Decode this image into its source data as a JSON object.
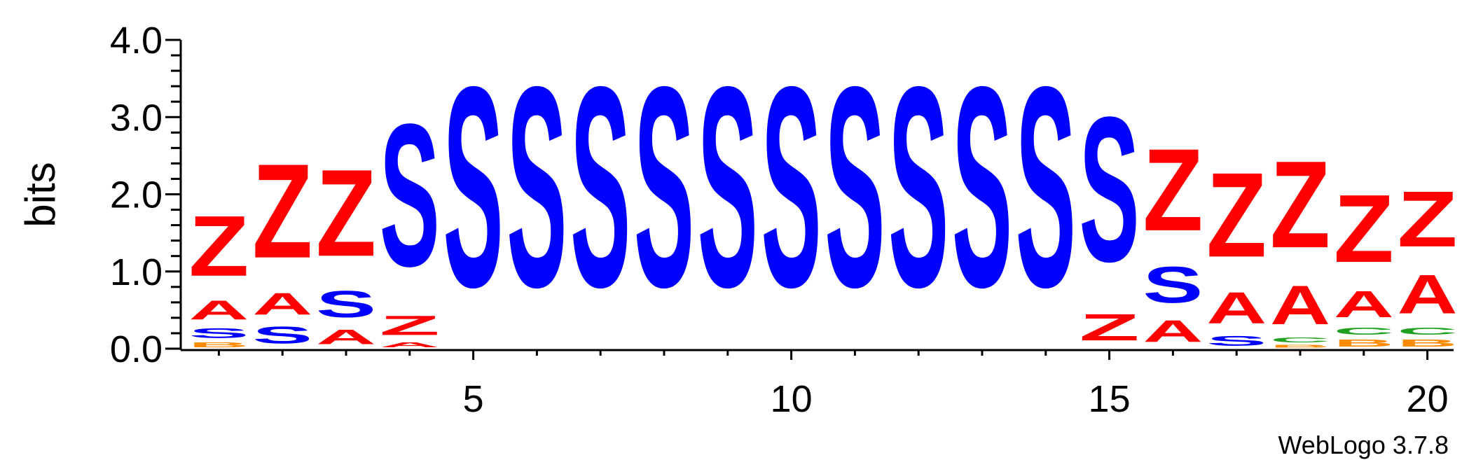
{
  "chart_data": {
    "type": "sequence-logo",
    "ylabel": "bits",
    "ylim": [
      0,
      4.0
    ],
    "y_ticks": [
      "0.0",
      "1.0",
      "2.0",
      "3.0",
      "4.0"
    ],
    "x_ticks": [
      {
        "pos": 5,
        "label": "5"
      },
      {
        "pos": 10,
        "label": "10"
      },
      {
        "pos": 15,
        "label": "15"
      },
      {
        "pos": 20,
        "label": "20"
      }
    ],
    "credit": "WebLogo 3.7.8",
    "colors": {
      "Z": "#ff0000",
      "A": "#ff0000",
      "S": "#0000ff",
      "C": "#21a121",
      "B": "#ff8c00"
    },
    "positions": [
      {
        "pos": 1,
        "stack": [
          [
            "B",
            0.1
          ],
          [
            "S",
            0.2
          ],
          [
            "A",
            0.4
          ],
          [
            "Z",
            1.25
          ]
        ]
      },
      {
        "pos": 2,
        "stack": [
          [
            "S",
            0.35
          ],
          [
            "A",
            0.45
          ],
          [
            "Z",
            1.95
          ]
        ]
      },
      {
        "pos": 3,
        "stack": [
          [
            "A",
            0.3
          ],
          [
            "S",
            0.55
          ],
          [
            "Z",
            1.8
          ]
        ]
      },
      {
        "pos": 4,
        "stack": [
          [
            "A",
            0.1
          ],
          [
            "Z",
            0.4
          ],
          [
            "S",
            2.95
          ]
        ]
      },
      {
        "pos": 5,
        "stack": [
          [
            "S",
            4.15
          ]
        ]
      },
      {
        "pos": 6,
        "stack": [
          [
            "S",
            4.15
          ]
        ]
      },
      {
        "pos": 7,
        "stack": [
          [
            "S",
            4.15
          ]
        ]
      },
      {
        "pos": 8,
        "stack": [
          [
            "S",
            4.15
          ]
        ]
      },
      {
        "pos": 9,
        "stack": [
          [
            "S",
            4.15
          ]
        ]
      },
      {
        "pos": 10,
        "stack": [
          [
            "S",
            4.15
          ]
        ]
      },
      {
        "pos": 11,
        "stack": [
          [
            "S",
            4.15
          ]
        ]
      },
      {
        "pos": 12,
        "stack": [
          [
            "S",
            4.15
          ]
        ]
      },
      {
        "pos": 13,
        "stack": [
          [
            "S",
            4.15
          ]
        ]
      },
      {
        "pos": 14,
        "stack": [
          [
            "S",
            4.15
          ]
        ]
      },
      {
        "pos": 15,
        "stack": [
          [
            "Z",
            0.55
          ],
          [
            "S",
            3.0
          ]
        ]
      },
      {
        "pos": 16,
        "stack": [
          [
            "A",
            0.45
          ],
          [
            "S",
            0.75
          ],
          [
            "Z",
            1.7
          ]
        ]
      },
      {
        "pos": 17,
        "stack": [
          [
            "S",
            0.2
          ],
          [
            "A",
            0.65
          ],
          [
            "Z",
            1.75
          ]
        ]
      },
      {
        "pos": 18,
        "stack": [
          [
            "B",
            0.06
          ],
          [
            "C",
            0.1
          ],
          [
            "A",
            0.8
          ],
          [
            "Z",
            1.8
          ]
        ]
      },
      {
        "pos": 19,
        "stack": [
          [
            "B",
            0.15
          ],
          [
            "C",
            0.15
          ],
          [
            "A",
            0.55
          ],
          [
            "Z",
            1.4
          ]
        ]
      },
      {
        "pos": 20,
        "stack": [
          [
            "B",
            0.15
          ],
          [
            "C",
            0.15
          ],
          [
            "A",
            0.8
          ],
          [
            "Z",
            1.15
          ]
        ]
      }
    ]
  }
}
